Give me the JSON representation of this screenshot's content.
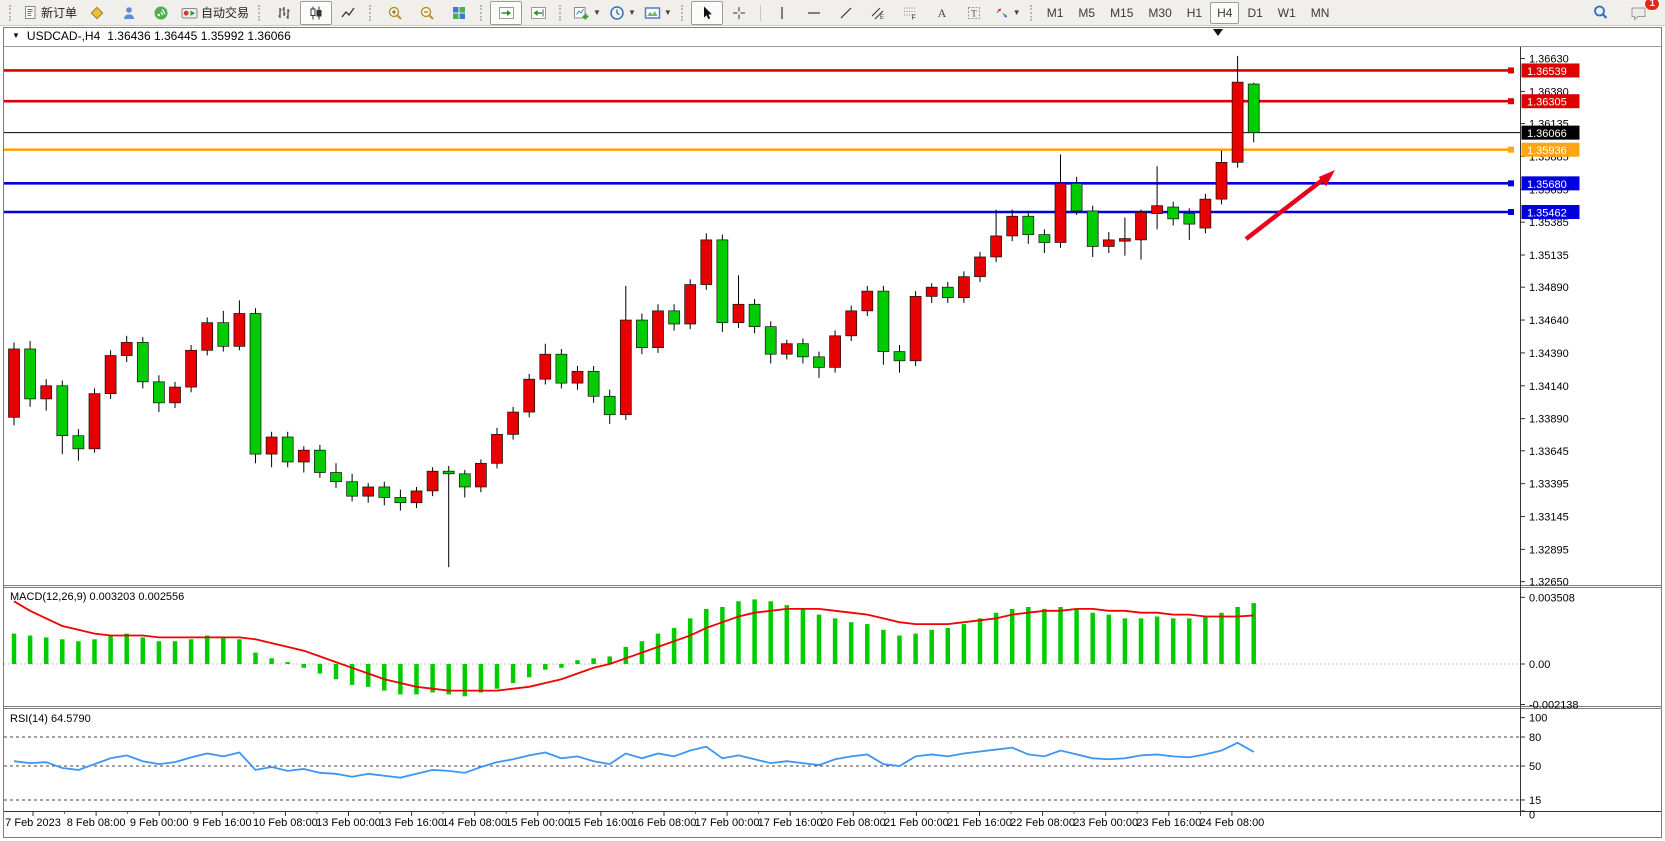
{
  "toolbar": {
    "new_order": "新订单",
    "auto_trading": "自动交易",
    "timeframes": [
      "M1",
      "M5",
      "M15",
      "M30",
      "H1",
      "H4",
      "D1",
      "W1",
      "MN"
    ],
    "active_timeframe": "H4",
    "notification_badge": "1"
  },
  "chart_title": {
    "symbol_period": "USDCAD-,H4",
    "ohlc": "1.36436 1.36445 1.35992 1.36066"
  },
  "indicators": {
    "macd_label": "MACD(12,26,9) 0.003203 0.002556",
    "rsi_label": "RSI(14) 64.5790"
  },
  "chart_data": {
    "type": "candlestick",
    "symbol": "USDCAD",
    "period": "H4",
    "ylim": [
      1.3265,
      1.3663
    ],
    "colors": {
      "up_candle": "#e80000",
      "down_candle": "#00cc00",
      "macd_hist": "#00cc00",
      "macd_signal": "#f00000",
      "rsi_line": "#3c96f2",
      "level_red": "#dd0000",
      "level_orange": "#ffa516",
      "level_blue": "#0000dd",
      "current_price": "#000000"
    },
    "price_axis_ticks": [
      "1.36630",
      "1.36380",
      "1.36135",
      "1.35885",
      "1.35635",
      "1.35385",
      "1.35135",
      "1.34890",
      "1.34640",
      "1.34390",
      "1.34140",
      "1.33890",
      "1.33645",
      "1.33395",
      "1.33145",
      "1.32895",
      "1.32650"
    ],
    "levels": [
      {
        "price": 1.36539,
        "label": "1.36539",
        "color": "red"
      },
      {
        "price": 1.36305,
        "label": "1.36305",
        "color": "red"
      },
      {
        "price": 1.36066,
        "label": "1.36066",
        "color": "black",
        "current": true
      },
      {
        "price": 1.35936,
        "label": "1.35936",
        "color": "orange"
      },
      {
        "price": 1.3568,
        "label": "1.35680",
        "color": "blue"
      },
      {
        "price": 1.35462,
        "label": "1.35462",
        "color": "blue"
      }
    ],
    "candles": [
      [
        1.339,
        1.3447,
        1.3384,
        1.3442
      ],
      [
        1.3442,
        1.3448,
        1.3398,
        1.3404
      ],
      [
        1.3404,
        1.3419,
        1.3395,
        1.3414
      ],
      [
        1.3414,
        1.3418,
        1.3362,
        1.3376
      ],
      [
        1.3376,
        1.3381,
        1.3357,
        1.3366
      ],
      [
        1.3366,
        1.3412,
        1.3363,
        1.3408
      ],
      [
        1.3408,
        1.3441,
        1.3404,
        1.3437
      ],
      [
        1.3437,
        1.3452,
        1.3432,
        1.3447
      ],
      [
        1.3447,
        1.3451,
        1.3412,
        1.3417
      ],
      [
        1.3417,
        1.3422,
        1.3394,
        1.3401
      ],
      [
        1.3401,
        1.3417,
        1.3397,
        1.3413
      ],
      [
        1.3413,
        1.3445,
        1.3409,
        1.3441
      ],
      [
        1.3441,
        1.3466,
        1.3437,
        1.3462
      ],
      [
        1.3462,
        1.3471,
        1.344,
        1.3444
      ],
      [
        1.3444,
        1.3479,
        1.3441,
        1.3469
      ],
      [
        1.3469,
        1.3473,
        1.3355,
        1.3362
      ],
      [
        1.3362,
        1.3379,
        1.3352,
        1.3375
      ],
      [
        1.3375,
        1.3379,
        1.3352,
        1.3356
      ],
      [
        1.3356,
        1.3368,
        1.3348,
        1.3365
      ],
      [
        1.3365,
        1.3369,
        1.3344,
        1.3348
      ],
      [
        1.3348,
        1.3355,
        1.3336,
        1.3341
      ],
      [
        1.3341,
        1.3347,
        1.3326,
        1.333
      ],
      [
        1.333,
        1.334,
        1.3325,
        1.3337
      ],
      [
        1.3337,
        1.3341,
        1.3323,
        1.3329
      ],
      [
        1.3329,
        1.3335,
        1.3319,
        1.3325
      ],
      [
        1.3325,
        1.3337,
        1.3321,
        1.3334
      ],
      [
        1.3334,
        1.3352,
        1.333,
        1.3349
      ],
      [
        1.3349,
        1.3353,
        1.3276,
        1.3347
      ],
      [
        1.3347,
        1.335,
        1.3329,
        1.3337
      ],
      [
        1.3337,
        1.3358,
        1.3333,
        1.3355
      ],
      [
        1.3355,
        1.3382,
        1.3351,
        1.3377
      ],
      [
        1.3377,
        1.3398,
        1.3373,
        1.3394
      ],
      [
        1.3394,
        1.3423,
        1.339,
        1.3419
      ],
      [
        1.3419,
        1.3446,
        1.3415,
        1.3438
      ],
      [
        1.3438,
        1.3442,
        1.3412,
        1.3416
      ],
      [
        1.3416,
        1.3429,
        1.3411,
        1.3425
      ],
      [
        1.3425,
        1.3429,
        1.3401,
        1.3406
      ],
      [
        1.3406,
        1.3411,
        1.3385,
        1.3392
      ],
      [
        1.3392,
        1.349,
        1.3388,
        1.3464
      ],
      [
        1.3464,
        1.3469,
        1.3438,
        1.3443
      ],
      [
        1.3443,
        1.3476,
        1.3439,
        1.3471
      ],
      [
        1.3471,
        1.3476,
        1.3456,
        1.3461
      ],
      [
        1.3461,
        1.3495,
        1.3457,
        1.3491
      ],
      [
        1.3491,
        1.353,
        1.3487,
        1.3525
      ],
      [
        1.3525,
        1.3529,
        1.3455,
        1.3462
      ],
      [
        1.3462,
        1.3498,
        1.3458,
        1.3476
      ],
      [
        1.3476,
        1.348,
        1.3454,
        1.3459
      ],
      [
        1.3459,
        1.3463,
        1.3431,
        1.3438
      ],
      [
        1.3438,
        1.3449,
        1.3434,
        1.3446
      ],
      [
        1.3446,
        1.345,
        1.3431,
        1.3436
      ],
      [
        1.3436,
        1.344,
        1.342,
        1.3428
      ],
      [
        1.3428,
        1.3456,
        1.3424,
        1.3452
      ],
      [
        1.3452,
        1.3475,
        1.3448,
        1.3471
      ],
      [
        1.3471,
        1.349,
        1.3467,
        1.3486
      ],
      [
        1.3486,
        1.349,
        1.343,
        1.344
      ],
      [
        1.344,
        1.3445,
        1.3424,
        1.3433
      ],
      [
        1.3433,
        1.3486,
        1.3429,
        1.3482
      ],
      [
        1.3482,
        1.3492,
        1.3477,
        1.3489
      ],
      [
        1.3489,
        1.3493,
        1.3477,
        1.3481
      ],
      [
        1.3481,
        1.3501,
        1.3477,
        1.3497
      ],
      [
        1.3497,
        1.3516,
        1.3493,
        1.3512
      ],
      [
        1.3512,
        1.3548,
        1.3508,
        1.3528
      ],
      [
        1.3528,
        1.3548,
        1.3524,
        1.3543
      ],
      [
        1.3543,
        1.3547,
        1.3522,
        1.3529
      ],
      [
        1.3529,
        1.3533,
        1.3515,
        1.3523
      ],
      [
        1.3523,
        1.359,
        1.3519,
        1.3568
      ],
      [
        1.3568,
        1.3573,
        1.3544,
        1.3547
      ],
      [
        1.3547,
        1.3551,
        1.3512,
        1.352
      ],
      [
        1.352,
        1.3531,
        1.3515,
        1.3525
      ],
      [
        1.3524,
        1.3542,
        1.3513,
        1.3526
      ],
      [
        1.3525,
        1.3548,
        1.351,
        1.3546
      ],
      [
        1.3545,
        1.3581,
        1.3533,
        1.3551
      ],
      [
        1.355,
        1.3554,
        1.3536,
        1.3541
      ],
      [
        1.3545,
        1.3549,
        1.3525,
        1.3537
      ],
      [
        1.3534,
        1.356,
        1.353,
        1.3556
      ],
      [
        1.3556,
        1.3593,
        1.3552,
        1.3584
      ],
      [
        1.3584,
        1.3665,
        1.358,
        1.3645
      ],
      [
        1.36436,
        1.36445,
        1.35992,
        1.36066
      ]
    ],
    "macd": {
      "label_values": {
        "macd": 0.003203,
        "signal": 0.002556
      },
      "axis_tick_labels": [
        "0.003508",
        "0.00",
        "-0.002138"
      ],
      "axis_tick_values": [
        0.003508,
        0,
        -0.002138
      ],
      "hist": [
        0.0016,
        0.0015,
        0.0014,
        0.0013,
        0.0012,
        0.0013,
        0.0015,
        0.0016,
        0.0014,
        0.0012,
        0.0012,
        0.0013,
        0.0015,
        0.0014,
        0.0013,
        0.0006,
        0.0003,
        0.0001,
        -0.0002,
        -0.0005,
        -0.0008,
        -0.0011,
        -0.0012,
        -0.0014,
        -0.0016,
        -0.0016,
        -0.0015,
        -0.0016,
        -0.0017,
        -0.0015,
        -0.0013,
        -0.001,
        -0.0007,
        -0.0003,
        -0.0002,
        0.0002,
        0.0003,
        0.0004,
        0.0009,
        0.0012,
        0.0016,
        0.0019,
        0.0024,
        0.0029,
        0.003,
        0.0033,
        0.0034,
        0.0033,
        0.0031,
        0.0029,
        0.0026,
        0.0024,
        0.0022,
        0.0021,
        0.0018,
        0.0015,
        0.0016,
        0.0018,
        0.0019,
        0.0021,
        0.0024,
        0.0027,
        0.0029,
        0.003,
        0.0029,
        0.003,
        0.0029,
        0.0027,
        0.0026,
        0.0024,
        0.0024,
        0.0025,
        0.0024,
        0.0024,
        0.0025,
        0.0027,
        0.003,
        0.003203
      ],
      "signal": [
        0.0033,
        0.0028,
        0.0024,
        0.002,
        0.0018,
        0.0016,
        0.0015,
        0.0015,
        0.0015,
        0.0014,
        0.0014,
        0.0014,
        0.0014,
        0.0014,
        0.0014,
        0.0013,
        0.0011,
        0.0009,
        0.0007,
        0.0004,
        0.0001,
        -0.0002,
        -0.0005,
        -0.0008,
        -0.001,
        -0.0012,
        -0.0013,
        -0.0014,
        -0.0014,
        -0.0014,
        -0.0014,
        -0.0013,
        -0.0012,
        -0.001,
        -0.0008,
        -0.0005,
        -0.0002,
        0.0,
        0.0003,
        0.0006,
        0.0009,
        0.0012,
        0.0015,
        0.0019,
        0.0022,
        0.0025,
        0.0027,
        0.0028,
        0.0029,
        0.0029,
        0.0029,
        0.0028,
        0.0027,
        0.0026,
        0.0024,
        0.0022,
        0.0021,
        0.0021,
        0.0021,
        0.0022,
        0.0023,
        0.0024,
        0.0026,
        0.0027,
        0.0028,
        0.0028,
        0.0029,
        0.0029,
        0.0028,
        0.0028,
        0.0027,
        0.0027,
        0.0026,
        0.0026,
        0.0025,
        0.0025,
        0.0025,
        0.002556
      ]
    },
    "rsi": {
      "current": 64.579,
      "level_lines": [
        80,
        50,
        15
      ],
      "axis_tick_labels": [
        "100",
        "80",
        "50",
        "15",
        "0"
      ],
      "axis_tick_values": [
        100,
        80,
        50,
        15,
        0
      ],
      "values": [
        55,
        53,
        54,
        48,
        46,
        52,
        58,
        61,
        55,
        52,
        54,
        59,
        63,
        60,
        64,
        46,
        49,
        45,
        47,
        43,
        42,
        39,
        42,
        40,
        38,
        42,
        46,
        45,
        43,
        49,
        54,
        57,
        61,
        64,
        58,
        60,
        55,
        52,
        63,
        58,
        63,
        60,
        66,
        70,
        58,
        61,
        57,
        53,
        55,
        53,
        51,
        57,
        60,
        62,
        52,
        50,
        60,
        62,
        60,
        63,
        65,
        67,
        69,
        62,
        60,
        66,
        62,
        58,
        57,
        58,
        61,
        62,
        60,
        59,
        62,
        66,
        74,
        64.58
      ]
    },
    "date_labels": [
      "7 Feb 2023",
      "8 Feb 08:00",
      "9 Feb 00:00",
      "9 Feb 16:00",
      "10 Feb 08:00",
      "13 Feb 00:00",
      "13 Feb 16:00",
      "14 Feb 08:00",
      "15 Feb 00:00",
      "15 Feb 16:00",
      "16 Feb 08:00",
      "17 Feb 00:00",
      "17 Feb 16:00",
      "20 Feb 08:00",
      "21 Feb 00:00",
      "21 Feb 16:00",
      "22 Feb 08:00",
      "23 Feb 00:00",
      "23 Feb 16:00",
      "24 Feb 08:00"
    ],
    "annotation_arrow": {
      "from": [
        1246,
        239
      ],
      "to": [
        1335,
        170
      ],
      "color": "#e8001c"
    }
  }
}
